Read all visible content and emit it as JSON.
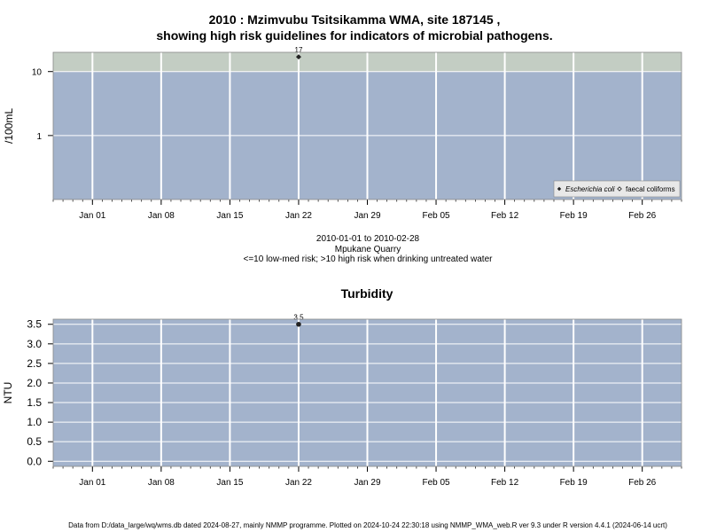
{
  "title_line1": "2010 : Mzimvubu Tsitsikamma WMA, site 187145 ,",
  "title_line2": "showing high risk guidelines for indicators of microbial pathogens.",
  "subtitle": {
    "date_range": "2010-01-01 to 2010-02-28",
    "site_name": "Mpukane Quarry",
    "risk_note": "<=10 low-med risk; >10 high risk when drinking untreated water"
  },
  "footer": "Data from D:/data_large/wq/wms.db dated 2024-08-27, mainly NMMP programme. Plotted on 2024-10-24 22:30:18 using NMMP_WMA_web.R ver 9.3 under R version 4.4.1 (2024-06-14 ucrt)",
  "colors": {
    "panel_bg": "#a3b3cc",
    "high_risk_band": "#c3cdc3",
    "grid": "#ffffff",
    "point": "#222222"
  },
  "chart_data": [
    {
      "type": "scatter",
      "title": "",
      "ylabel": "/100mL",
      "yscale": "log",
      "ylim": [
        0.1,
        20
      ],
      "xlim": [
        "2009-12-28",
        "2010-03-02"
      ],
      "x_tick_labels": [
        "Jan 01",
        "Jan 08",
        "Jan 15",
        "Jan 22",
        "Jan 29",
        "Feb 05",
        "Feb 12",
        "Feb 19",
        "Feb 26"
      ],
      "y_ticks": [
        1,
        10
      ],
      "y_tick_labels": [
        "1",
        "10"
      ],
      "grid": true,
      "threshold": 10,
      "legend_position": "bottom-right",
      "series": [
        {
          "name": "Escherichia coli",
          "marker": "filled-diamond",
          "points": [
            {
              "x": "2010-01-22",
              "y": 17,
              "label": "17"
            }
          ]
        },
        {
          "name": "faecal coliforms",
          "marker": "open-diamond",
          "points": []
        }
      ]
    },
    {
      "type": "scatter",
      "title": "Turbidity",
      "ylabel": "NTU",
      "yscale": "linear",
      "ylim": [
        -0.13,
        3.63
      ],
      "xlim": [
        "2009-12-28",
        "2010-03-02"
      ],
      "x_tick_labels": [
        "Jan 01",
        "Jan 08",
        "Jan 15",
        "Jan 22",
        "Jan 29",
        "Feb 05",
        "Feb 12",
        "Feb 19",
        "Feb 26"
      ],
      "y_ticks": [
        0,
        0.5,
        1,
        1.5,
        2,
        2.5,
        3,
        3.5
      ],
      "y_tick_labels": [
        "0.0",
        "0.5",
        "1.0",
        "1.5",
        "2.0",
        "2.5",
        "3.0",
        "3.5"
      ],
      "grid": true,
      "series": [
        {
          "name": "",
          "marker": "filled-circle",
          "points": [
            {
              "x": "2010-01-22",
              "y": 3.5,
              "label": "3.5"
            }
          ]
        }
      ]
    }
  ]
}
